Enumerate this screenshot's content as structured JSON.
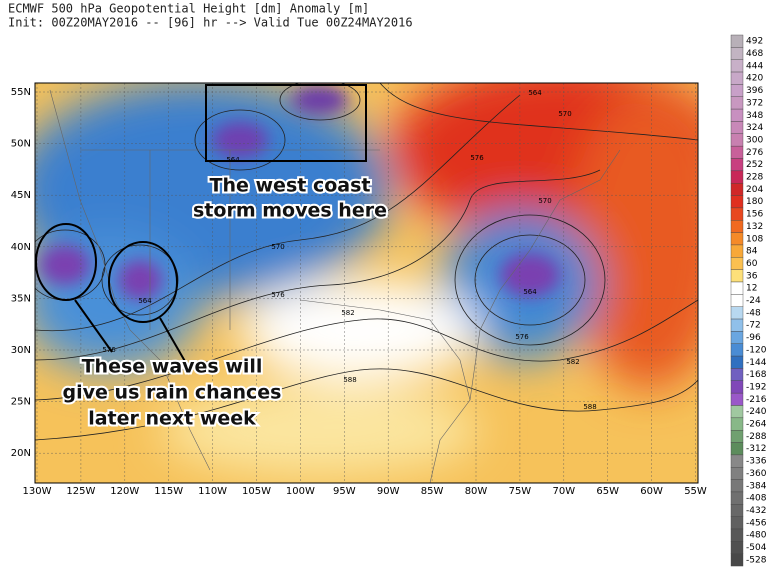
{
  "header": {
    "line1": "ECMWF 500 hPa Geopotential Height [dm] Anomaly [m]",
    "line2": "Init: 00Z20MAY2016 -- [96] hr --> Valid Tue 00Z24MAY2016"
  },
  "map": {
    "lat_labels": [
      "55N",
      "50N",
      "45N",
      "40N",
      "35N",
      "30N",
      "25N",
      "20N"
    ],
    "lon_labels": [
      "130W",
      "125W",
      "120W",
      "115W",
      "110W",
      "105W",
      "100W",
      "95W",
      "90W",
      "85W",
      "80W",
      "75W",
      "70W",
      "65W",
      "60W",
      "55W"
    ],
    "contour_labels": [
      564,
      570,
      576,
      570,
      570,
      576,
      582,
      588,
      564,
      576,
      582,
      588,
      564,
      576,
      564
    ]
  },
  "annotations": {
    "storm": [
      "The west coast",
      "storm moves here"
    ],
    "waves": [
      "These waves will",
      "give us rain chances",
      "later next week"
    ]
  },
  "colorbar": {
    "labels": [
      492,
      468,
      444,
      420,
      396,
      372,
      348,
      324,
      300,
      276,
      252,
      228,
      204,
      180,
      156,
      132,
      108,
      84,
      60,
      36,
      12,
      -24,
      -48,
      -72,
      -96,
      -120,
      -144,
      -168,
      -192,
      -216,
      -240,
      -264,
      -288,
      -312,
      -336,
      -360,
      -384,
      -408,
      -432,
      -456,
      -480,
      -504,
      -528
    ]
  }
}
